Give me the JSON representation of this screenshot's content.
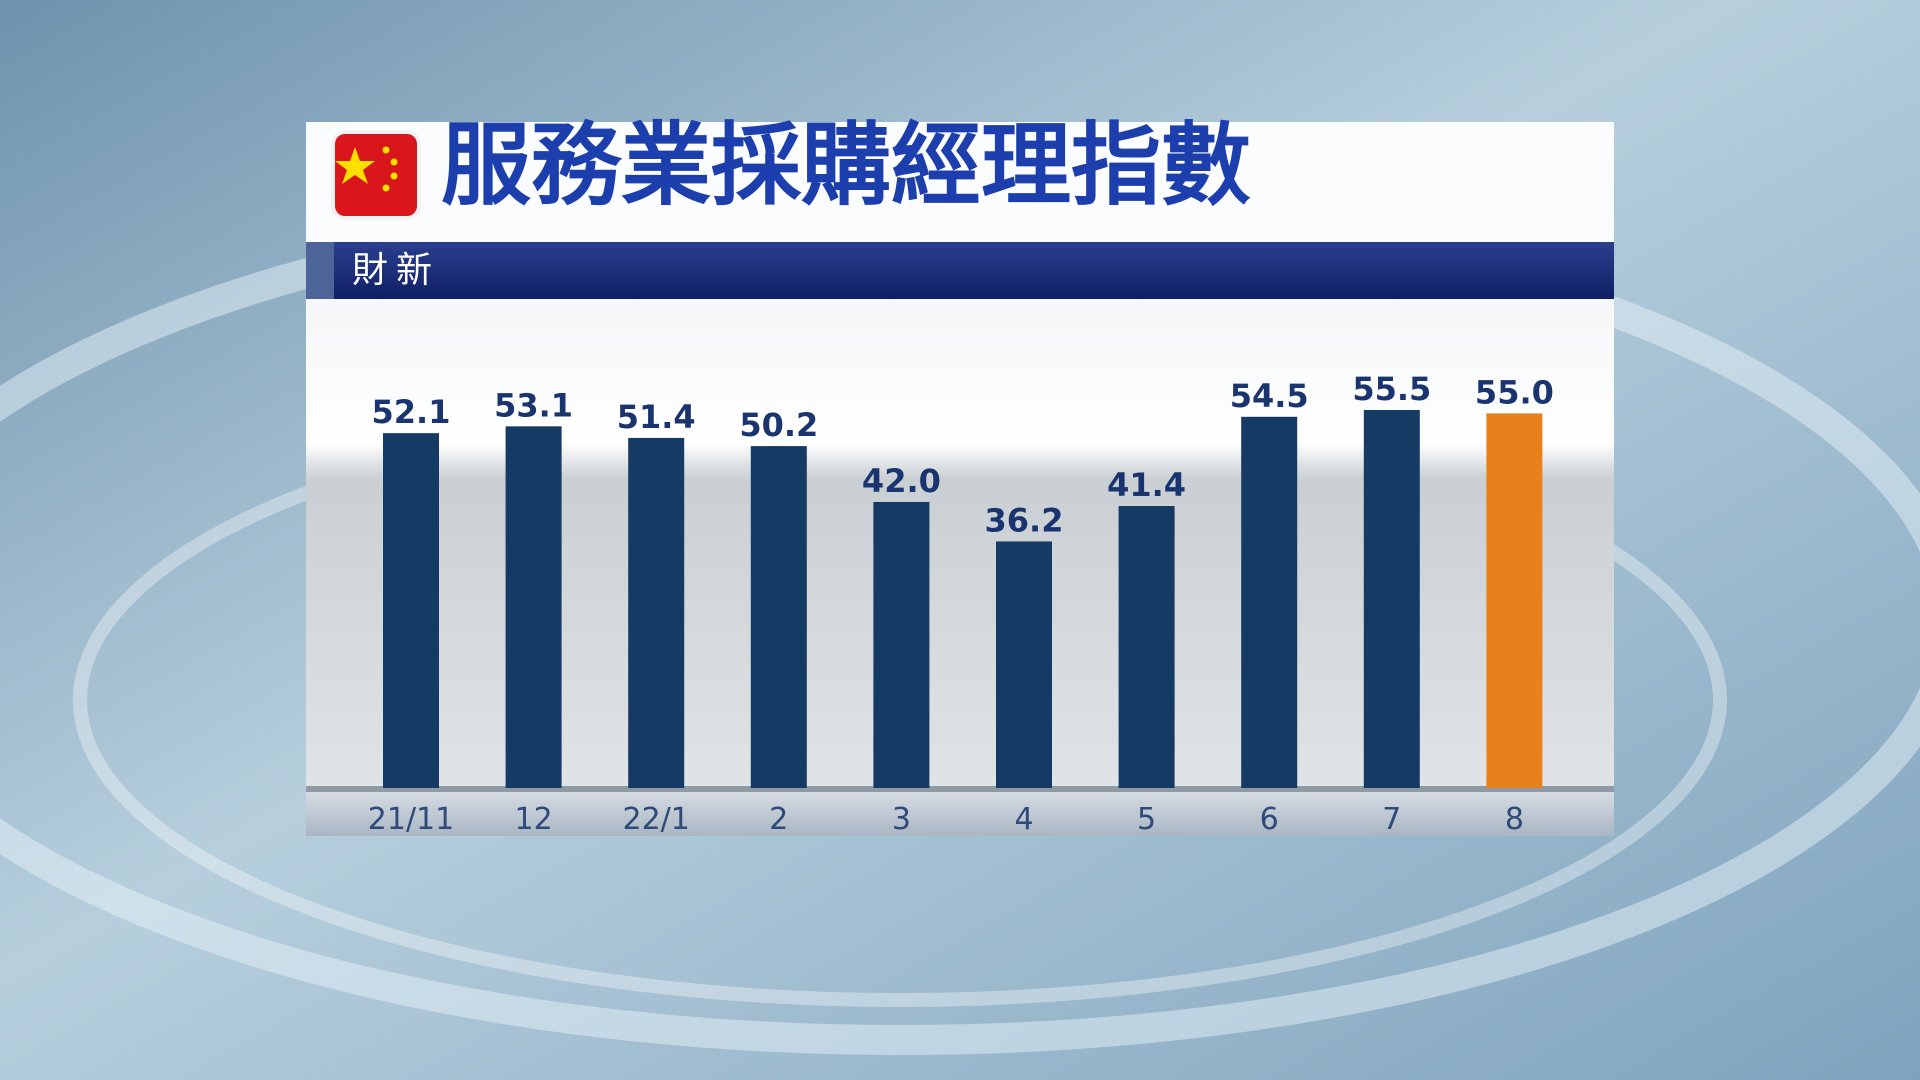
{
  "chart_data": {
    "type": "bar",
    "title": "服務業採購經理指數",
    "subtitle": "財新",
    "categories": [
      "21/11",
      "12",
      "22/1",
      "2",
      "3",
      "4",
      "5",
      "6",
      "7",
      "8"
    ],
    "values": [
      52.1,
      53.1,
      51.4,
      50.2,
      42.0,
      36.2,
      41.4,
      54.5,
      55.5,
      55.0
    ],
    "value_labels": [
      "52.1",
      "53.1",
      "51.4",
      "50.2",
      "42.0",
      "36.2",
      "41.4",
      "54.5",
      "55.5",
      "55.0"
    ],
    "colors": [
      "#153a63",
      "#153a63",
      "#153a63",
      "#153a63",
      "#153a63",
      "#153a63",
      "#153a63",
      "#153a63",
      "#153a63",
      "#e8801c"
    ]
  }
}
